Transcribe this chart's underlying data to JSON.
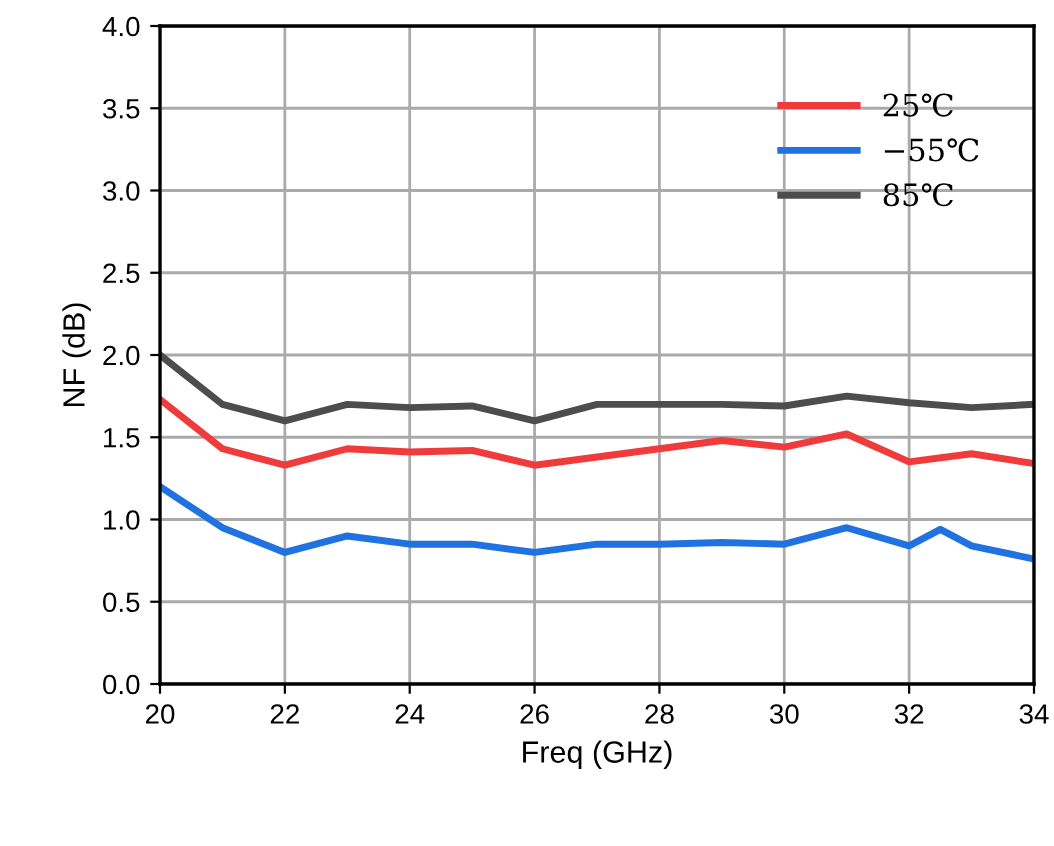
{
  "chart_data": {
    "type": "line",
    "xlabel": "Freq (GHz)",
    "ylabel": "NF (dB)",
    "x": [
      20,
      21,
      22,
      23,
      24,
      25,
      26,
      27,
      28,
      29,
      30,
      31,
      32,
      33,
      34
    ],
    "series": [
      {
        "name": "25℃",
        "color": "#ef3b3b",
        "values": [
          1.73,
          1.43,
          1.33,
          1.43,
          1.41,
          1.42,
          1.33,
          1.38,
          1.43,
          1.48,
          1.44,
          1.52,
          1.35,
          1.4,
          1.34
        ]
      },
      {
        "name": "−55℃",
        "color": "#1f72e0",
        "x": [
          20,
          21,
          22,
          23,
          24,
          25,
          26,
          27,
          28,
          29,
          30,
          31,
          32,
          32.5,
          33,
          34
        ],
        "values": [
          1.2,
          0.95,
          0.8,
          0.9,
          0.85,
          0.85,
          0.8,
          0.85,
          0.85,
          0.86,
          0.85,
          0.95,
          0.84,
          0.94,
          0.84,
          0.76
        ]
      },
      {
        "name": "85℃",
        "color": "#4d4d4d",
        "values": [
          2.0,
          1.7,
          1.6,
          1.7,
          1.68,
          1.69,
          1.6,
          1.7,
          1.7,
          1.7,
          1.69,
          1.75,
          1.71,
          1.68,
          1.7
        ]
      }
    ],
    "xlim": [
      20,
      34
    ],
    "xticks": [
      20,
      22,
      24,
      26,
      28,
      30,
      32,
      34
    ],
    "ylim": [
      0,
      4
    ],
    "yticks": [
      {
        "value": 0,
        "label": "0.0"
      },
      0.5,
      {
        "value": 1,
        "label": "1.0"
      },
      1.5,
      {
        "value": 2,
        "label": "2.0"
      },
      2.5,
      {
        "value": 3,
        "label": "3.0"
      },
      3.5,
      {
        "value": 4,
        "label": "4.0"
      }
    ],
    "grid": true,
    "legend": "top right",
    "marker": "none",
    "line_style": "solid"
  }
}
